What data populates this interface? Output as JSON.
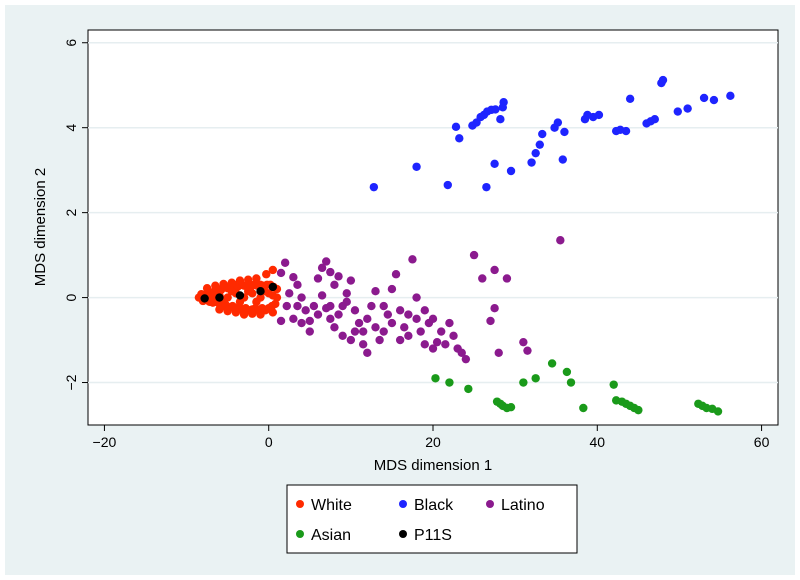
{
  "chart_data": {
    "type": "scatter",
    "xlabel": "MDS dimension 1",
    "ylabel": "MDS dimension 2",
    "xlim": [
      -22,
      62
    ],
    "ylim": [
      -3,
      6.3
    ],
    "xticks": [
      -20,
      0,
      20,
      40,
      60
    ],
    "yticks": [
      -2,
      0,
      2,
      4,
      6
    ],
    "grid": true,
    "legend_position": "bottom",
    "series": [
      {
        "name": "White",
        "color": "#ff2a00",
        "points": [
          [
            -8.5,
            0.0
          ],
          [
            -8.2,
            0.08
          ],
          [
            -8.0,
            -0.08
          ],
          [
            -7.8,
            0.05
          ],
          [
            -7.6,
            -0.05
          ],
          [
            -7.4,
            0.12
          ],
          [
            -7.2,
            -0.1
          ],
          [
            -7.0,
            0.1
          ],
          [
            -6.8,
            -0.12
          ],
          [
            -6.6,
            0.15
          ],
          [
            -6.4,
            -0.1
          ],
          [
            -6.2,
            0.2
          ],
          [
            -6.0,
            -0.15
          ],
          [
            -5.8,
            0.18
          ],
          [
            -5.6,
            -0.2
          ],
          [
            -5.4,
            0.25
          ],
          [
            -5.2,
            -0.18
          ],
          [
            -5.0,
            0.22
          ],
          [
            -4.8,
            -0.25
          ],
          [
            -4.6,
            0.28
          ],
          [
            -4.4,
            -0.2
          ],
          [
            -4.2,
            0.3
          ],
          [
            -4.0,
            -0.28
          ],
          [
            -3.8,
            0.25
          ],
          [
            -3.6,
            -0.22
          ],
          [
            -3.4,
            0.3
          ],
          [
            -3.2,
            -0.3
          ],
          [
            -3.0,
            0.28
          ],
          [
            -2.8,
            -0.25
          ],
          [
            -2.6,
            0.3
          ],
          [
            -2.4,
            -0.3
          ],
          [
            -2.2,
            0.25
          ],
          [
            -2.0,
            -0.28
          ],
          [
            -1.8,
            0.3
          ],
          [
            -1.6,
            -0.25
          ],
          [
            -1.4,
            0.28
          ],
          [
            -1.2,
            -0.3
          ],
          [
            -1.0,
            0.3
          ],
          [
            -0.8,
            -0.25
          ],
          [
            -0.6,
            0.28
          ],
          [
            -0.4,
            -0.3
          ],
          [
            -0.2,
            0.3
          ],
          [
            0.0,
            -0.25
          ],
          [
            0.2,
            0.3
          ],
          [
            0.4,
            -0.2
          ],
          [
            0.6,
            0.25
          ],
          [
            0.8,
            -0.15
          ],
          [
            1.0,
            0.2
          ],
          [
            0.5,
            0.65
          ],
          [
            -0.3,
            0.55
          ],
          [
            -1.5,
            0.45
          ],
          [
            -2.5,
            0.42
          ],
          [
            -3.5,
            0.4
          ],
          [
            -4.5,
            0.35
          ],
          [
            -5.5,
            0.32
          ],
          [
            -6.5,
            0.28
          ],
          [
            -7.5,
            0.22
          ],
          [
            -1.0,
            -0.4
          ],
          [
            -2.0,
            -0.38
          ],
          [
            -3.0,
            -0.4
          ],
          [
            -4.0,
            -0.35
          ],
          [
            -5.0,
            -0.32
          ],
          [
            -6.0,
            -0.28
          ],
          [
            0.5,
            -0.35
          ],
          [
            -7.0,
            0.0
          ],
          [
            -6.0,
            0.05
          ],
          [
            -5.0,
            0.0
          ],
          [
            -4.0,
            0.1
          ],
          [
            -3.0,
            0.0
          ],
          [
            -2.0,
            0.1
          ],
          [
            -1.0,
            0.0
          ],
          [
            0.0,
            0.1
          ],
          [
            1.0,
            0.0
          ],
          [
            -4.5,
            0.15
          ],
          [
            -3.5,
            -0.1
          ],
          [
            -2.5,
            0.15
          ],
          [
            -1.5,
            -0.1
          ],
          [
            -0.5,
            0.15
          ],
          [
            -5.5,
            -0.05
          ],
          [
            -6.5,
            0.05
          ],
          [
            0.5,
            0.05
          ]
        ]
      },
      {
        "name": "Black",
        "color": "#1e24ff",
        "points": [
          [
            12.8,
            2.6
          ],
          [
            18.0,
            3.08
          ],
          [
            21.8,
            2.65
          ],
          [
            22.8,
            4.02
          ],
          [
            23.2,
            3.75
          ],
          [
            24.8,
            4.05
          ],
          [
            25.3,
            4.12
          ],
          [
            25.8,
            4.25
          ],
          [
            26.2,
            4.3
          ],
          [
            26.6,
            4.38
          ],
          [
            27.1,
            4.42
          ],
          [
            27.6,
            4.43
          ],
          [
            28.2,
            4.2
          ],
          [
            28.5,
            4.48
          ],
          [
            28.6,
            4.6
          ],
          [
            27.5,
            3.15
          ],
          [
            26.5,
            2.6
          ],
          [
            29.5,
            2.98
          ],
          [
            32.0,
            3.18
          ],
          [
            32.5,
            3.4
          ],
          [
            33.0,
            3.6
          ],
          [
            33.3,
            3.85
          ],
          [
            34.8,
            4.0
          ],
          [
            35.2,
            4.12
          ],
          [
            36.0,
            3.9
          ],
          [
            35.8,
            3.25
          ],
          [
            38.5,
            4.2
          ],
          [
            38.8,
            4.3
          ],
          [
            39.5,
            4.25
          ],
          [
            40.2,
            4.3
          ],
          [
            42.3,
            3.92
          ],
          [
            42.8,
            3.95
          ],
          [
            43.5,
            3.92
          ],
          [
            44.0,
            4.68
          ],
          [
            46.0,
            4.1
          ],
          [
            46.5,
            4.15
          ],
          [
            47.0,
            4.2
          ],
          [
            47.8,
            5.05
          ],
          [
            48.0,
            5.12
          ],
          [
            49.8,
            4.38
          ],
          [
            51.0,
            4.45
          ],
          [
            53.0,
            4.7
          ],
          [
            54.2,
            4.65
          ],
          [
            56.2,
            4.75
          ]
        ]
      },
      {
        "name": "Latino",
        "color": "#8b1a8e",
        "points": [
          [
            1.5,
            0.58
          ],
          [
            2.0,
            0.82
          ],
          [
            3.0,
            0.48
          ],
          [
            3.5,
            0.3
          ],
          [
            4.0,
            0.0
          ],
          [
            2.5,
            0.1
          ],
          [
            2.2,
            -0.2
          ],
          [
            3.0,
            -0.5
          ],
          [
            1.5,
            -0.55
          ],
          [
            4.5,
            -0.3
          ],
          [
            5.0,
            -0.55
          ],
          [
            5.5,
            -0.2
          ],
          [
            6.0,
            0.45
          ],
          [
            6.5,
            0.7
          ],
          [
            7.0,
            0.85
          ],
          [
            7.5,
            0.6
          ],
          [
            8.0,
            0.3
          ],
          [
            6.5,
            0.05
          ],
          [
            7.0,
            -0.25
          ],
          [
            7.5,
            -0.5
          ],
          [
            8.0,
            -0.7
          ],
          [
            8.5,
            -0.4
          ],
          [
            9.0,
            -0.2
          ],
          [
            9.5,
            0.1
          ],
          [
            10.0,
            0.4
          ],
          [
            10.5,
            -0.3
          ],
          [
            11.0,
            -0.6
          ],
          [
            11.5,
            -0.8
          ],
          [
            12.0,
            -0.5
          ],
          [
            12.5,
            -0.2
          ],
          [
            13.0,
            -0.7
          ],
          [
            13.5,
            -1.0
          ],
          [
            14.0,
            -0.8
          ],
          [
            14.5,
            -0.4
          ],
          [
            15.0,
            0.2
          ],
          [
            15.5,
            0.55
          ],
          [
            16.0,
            -0.3
          ],
          [
            16.5,
            -0.7
          ],
          [
            17.0,
            -0.9
          ],
          [
            17.5,
            0.9
          ],
          [
            18.0,
            -0.5
          ],
          [
            18.5,
            -0.8
          ],
          [
            19.0,
            -1.1
          ],
          [
            19.5,
            -0.6
          ],
          [
            20.0,
            -1.2
          ],
          [
            20.5,
            -1.05
          ],
          [
            21.0,
            -0.8
          ],
          [
            22.0,
            -0.6
          ],
          [
            22.5,
            -0.9
          ],
          [
            23.0,
            -1.2
          ],
          [
            23.5,
            -1.3
          ],
          [
            24.0,
            -1.45
          ],
          [
            25.0,
            1.0
          ],
          [
            26.0,
            0.45
          ],
          [
            27.0,
            -0.55
          ],
          [
            27.5,
            0.65
          ],
          [
            28.0,
            -1.3
          ],
          [
            29.0,
            0.45
          ],
          [
            31.0,
            -1.05
          ],
          [
            31.5,
            -1.25
          ],
          [
            35.5,
            1.35
          ],
          [
            27.5,
            -0.25
          ],
          [
            12.0,
            -1.3
          ],
          [
            11.5,
            -1.1
          ],
          [
            10.0,
            -1.0
          ],
          [
            9.0,
            -0.9
          ],
          [
            5.0,
            -0.8
          ],
          [
            4.0,
            -0.6
          ],
          [
            13.0,
            0.15
          ],
          [
            14.0,
            -0.2
          ],
          [
            15.0,
            -0.6
          ],
          [
            16.0,
            -1.0
          ],
          [
            21.5,
            -1.1
          ],
          [
            9.5,
            -0.1
          ],
          [
            10.5,
            -0.8
          ],
          [
            6.0,
            -0.4
          ],
          [
            7.5,
            -0.2
          ],
          [
            8.5,
            0.5
          ],
          [
            3.5,
            -0.2
          ],
          [
            18.0,
            0.0
          ],
          [
            19.0,
            -0.3
          ],
          [
            20.0,
            -0.5
          ],
          [
            17.0,
            -0.4
          ]
        ]
      },
      {
        "name": "Asian",
        "color": "#1a9a1a",
        "points": [
          [
            20.3,
            -1.9
          ],
          [
            22.0,
            -2.0
          ],
          [
            24.3,
            -2.15
          ],
          [
            27.8,
            -2.45
          ],
          [
            28.2,
            -2.5
          ],
          [
            28.5,
            -2.55
          ],
          [
            29.0,
            -2.6
          ],
          [
            29.5,
            -2.58
          ],
          [
            31.0,
            -2.0
          ],
          [
            32.5,
            -1.9
          ],
          [
            34.5,
            -1.55
          ],
          [
            36.3,
            -1.75
          ],
          [
            36.8,
            -2.0
          ],
          [
            38.3,
            -2.6
          ],
          [
            42.0,
            -2.05
          ],
          [
            42.3,
            -2.42
          ],
          [
            43.0,
            -2.45
          ],
          [
            43.5,
            -2.5
          ],
          [
            44.0,
            -2.55
          ],
          [
            44.5,
            -2.6
          ],
          [
            45.0,
            -2.65
          ],
          [
            52.3,
            -2.5
          ],
          [
            52.8,
            -2.55
          ],
          [
            53.3,
            -2.6
          ],
          [
            54.0,
            -2.62
          ],
          [
            54.7,
            -2.68
          ]
        ]
      },
      {
        "name": "P11S",
        "color": "#000000",
        "points": [
          [
            -7.8,
            -0.02
          ],
          [
            -6.0,
            0.0
          ],
          [
            -3.5,
            0.05
          ],
          [
            -1.0,
            0.15
          ],
          [
            0.5,
            0.25
          ]
        ]
      }
    ]
  }
}
